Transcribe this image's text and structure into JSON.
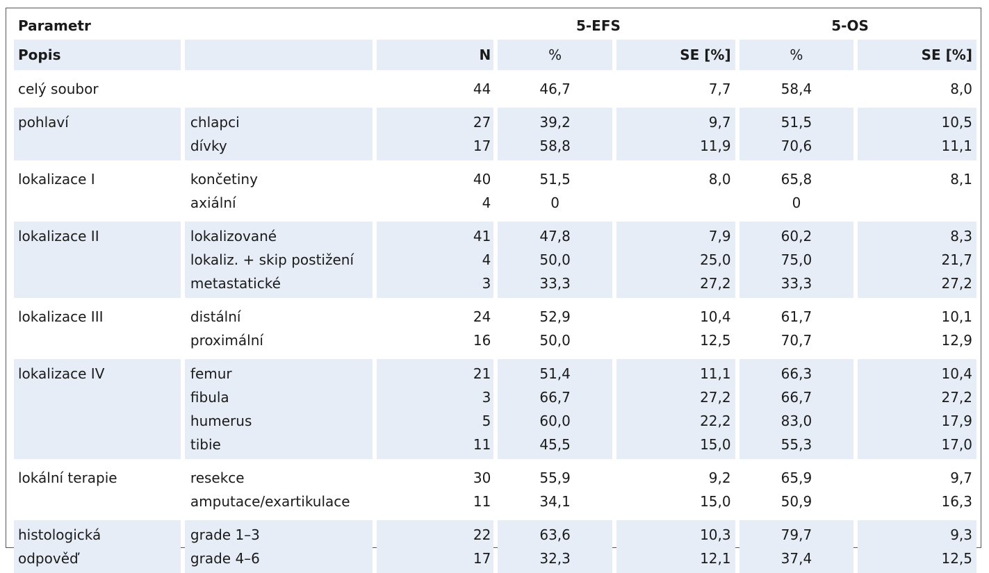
{
  "header": {
    "parametr": "Parametr",
    "efs": "5-EFS",
    "os": "5-OS",
    "popis": "Popis",
    "n": "N",
    "pct1": "%",
    "se1": "SE [%]",
    "pct2": "%",
    "se2": "SE [%]"
  },
  "groups": [
    {
      "label": "celý soubor",
      "rows": [
        [
          "",
          "44",
          "46,7",
          "7,7",
          "58,4",
          "8,0"
        ]
      ]
    },
    {
      "label": "pohlaví",
      "rows": [
        [
          "chlapci",
          "27",
          "39,2",
          "9,7",
          "51,5",
          "10,5"
        ],
        [
          "dívky",
          "17",
          "58,8",
          "11,9",
          "70,6",
          "11,1"
        ]
      ]
    },
    {
      "label": "lokalizace I",
      "rows": [
        [
          "končetiny",
          "40",
          "51,5",
          "8,0",
          "65,8",
          "8,1"
        ],
        [
          "axiální",
          "4",
          "0",
          "",
          "0",
          ""
        ]
      ]
    },
    {
      "label": "lokalizace II",
      "rows": [
        [
          "lokalizované",
          "41",
          "47,8",
          "7,9",
          "60,2",
          "8,3"
        ],
        [
          "lokaliz. + skip postižení",
          "4",
          "50,0",
          "25,0",
          "75,0",
          "21,7"
        ],
        [
          "metastatické",
          "3",
          "33,3",
          "27,2",
          "33,3",
          "27,2"
        ]
      ]
    },
    {
      "label": "lokalizace III",
      "rows": [
        [
          "distální",
          "24",
          "52,9",
          "10,4",
          "61,7",
          "10,1"
        ],
        [
          "proximální",
          "16",
          "50,0",
          "12,5",
          "70,7",
          "12,9"
        ]
      ]
    },
    {
      "label": "lokalizace IV",
      "rows": [
        [
          "femur",
          "21",
          "51,4",
          "11,1",
          "66,3",
          "10,4"
        ],
        [
          "fibula",
          "3",
          "66,7",
          "27,2",
          "66,7",
          "27,2"
        ],
        [
          "humerus",
          "5",
          "60,0",
          "22,2",
          "83,0",
          "17,9"
        ],
        [
          "tibie",
          "11",
          "45,5",
          "15,0",
          "55,3",
          "17,0"
        ]
      ]
    },
    {
      "label": "lokální terapie",
      "rows": [
        [
          "resekce",
          "30",
          "55,9",
          "9,2",
          "65,9",
          "9,7"
        ],
        [
          "amputace/exartikulace",
          "11",
          "34,1",
          "15,0",
          "50,9",
          "16,3"
        ]
      ]
    },
    {
      "label": "histologická odpověď",
      "label_lines": [
        "histologická",
        "odpověď"
      ],
      "rows": [
        [
          "grade 1–3",
          "22",
          "63,6",
          "10,3",
          "79,7",
          "9,3"
        ],
        [
          "grade 4–6",
          "17",
          "32,3",
          "12,1",
          "37,4",
          "12,5"
        ]
      ]
    }
  ]
}
